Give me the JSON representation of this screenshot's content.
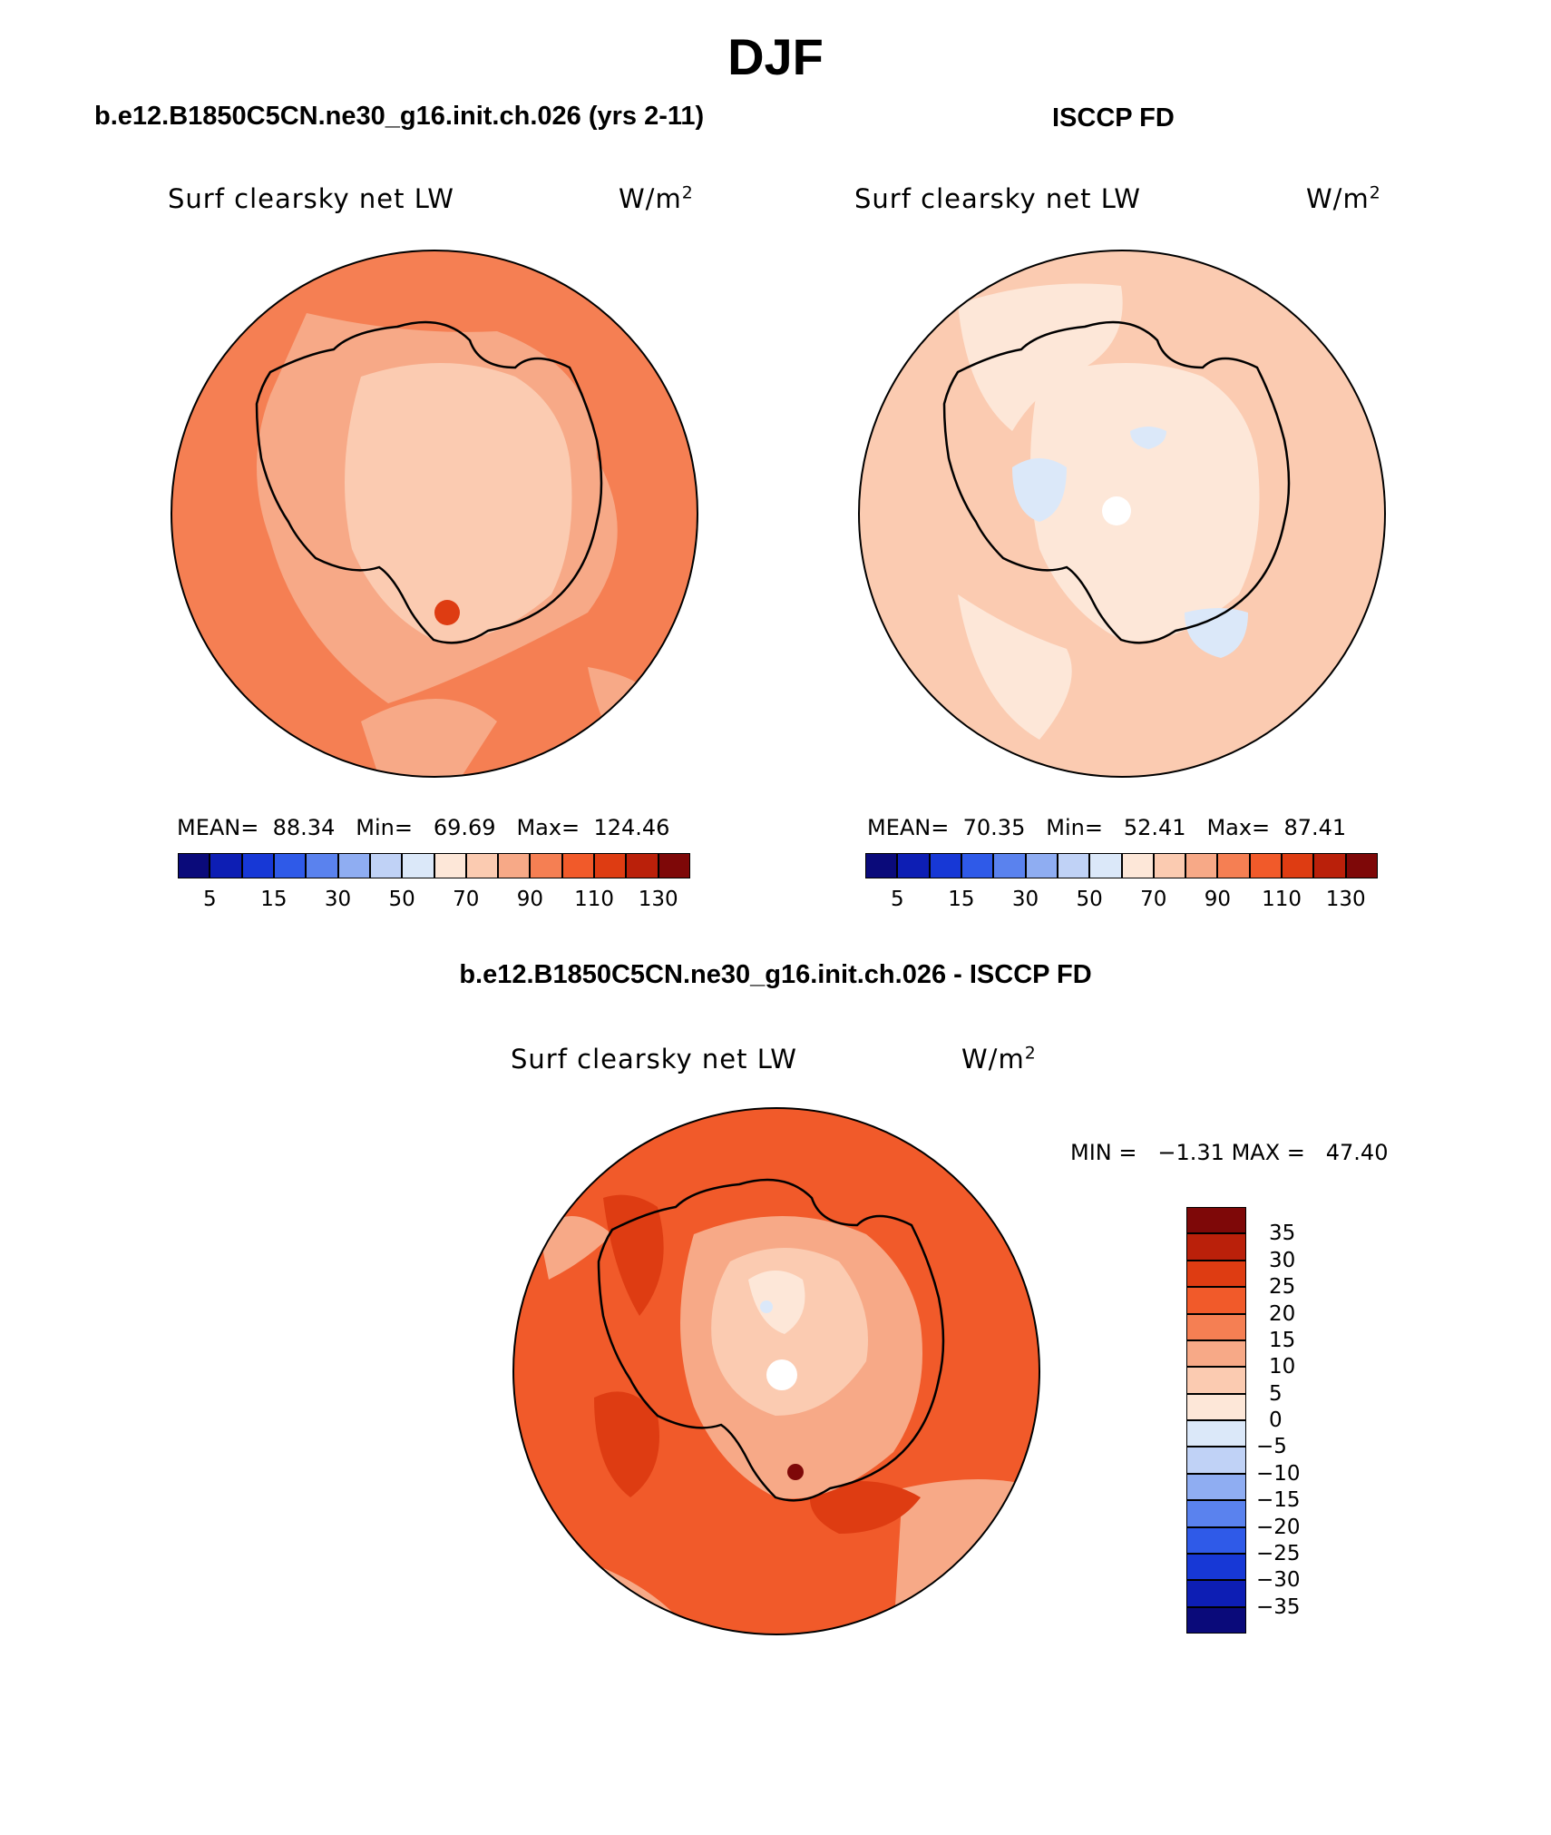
{
  "figure": {
    "title": "DJF",
    "panels": [
      {
        "heading": "b.e12.B1850C5CN.ne30_g16.init.ch.026 (yrs 2-11)",
        "variable": "Surf clearsky net LW",
        "units_base": "W/m",
        "units_exp": "2",
        "stats": {
          "mean_label": "MEAN=",
          "mean": "88.34",
          "min_label": "Min=",
          "min": "69.69",
          "max_label": "Max=",
          "max": "124.46"
        }
      },
      {
        "heading": "ISCCP FD",
        "variable": "Surf clearsky net LW",
        "units_base": "W/m",
        "units_exp": "2",
        "stats": {
          "mean_label": "MEAN=",
          "mean": "70.35",
          "min_label": "Min=",
          "min": "52.41",
          "max_label": "Max=",
          "max": "87.41"
        }
      },
      {
        "heading": "b.e12.B1850C5CN.ne30_g16.init.ch.026 - ISCCP FD",
        "variable": "Surf clearsky net LW",
        "units_base": "W/m",
        "units_exp": "2",
        "stats": {
          "min_label": "MIN =",
          "min": "−1.31",
          "max_label": "MAX =",
          "max": "47.40"
        }
      }
    ],
    "abs_colorbar": {
      "colors": [
        "#0a0a7a",
        "#0d1eb4",
        "#1738d6",
        "#2f5ae8",
        "#5a82ee",
        "#8fadf2",
        "#c0d2f6",
        "#dbe8f9",
        "#fde7d8",
        "#fbcbb1",
        "#f7a987",
        "#f57f53",
        "#f15a2a",
        "#de3c12",
        "#ba200a",
        "#7e0808"
      ],
      "tick_labels": [
        "5",
        "15",
        "30",
        "50",
        "70",
        "90",
        "110",
        "130"
      ]
    },
    "diff_colorbar": {
      "colors": [
        "#0a0a7a",
        "#0d1eb4",
        "#1738d6",
        "#2f5ae8",
        "#5a82ee",
        "#8fadf2",
        "#c0d2f6",
        "#dbe8f9",
        "#fde7d8",
        "#fbcbb1",
        "#f7a987",
        "#f57f53",
        "#f15a2a",
        "#de3c12",
        "#ba200a",
        "#7e0808"
      ],
      "tick_labels": [
        "−35",
        "−30",
        "−25",
        "−20",
        "−15",
        "−10",
        "−5",
        "0",
        "5",
        "10",
        "15",
        "20",
        "25",
        "30",
        "35"
      ]
    },
    "map_colors": {
      "ocean_model": "#f57f53",
      "ocean_obs": "#fbcbb1",
      "ocean_diff": "#f15a2a",
      "ice_model": "#fbcbb1",
      "ice_obs": "#fde7d8",
      "coast": "#000000"
    }
  }
}
